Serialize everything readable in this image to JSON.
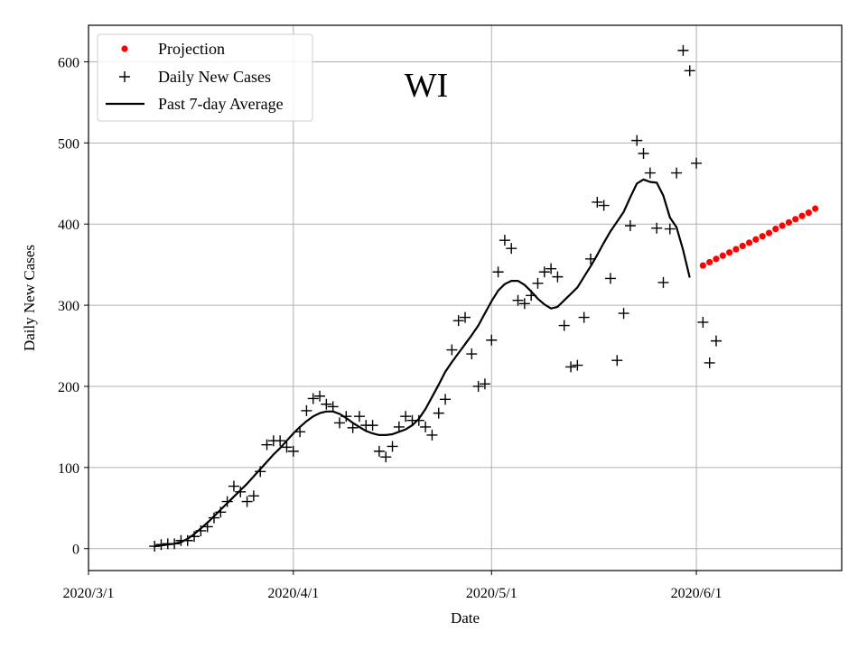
{
  "chart_data": {
    "type": "scatter",
    "title": "WI",
    "xlabel": "Date",
    "ylabel": "Daily New Cases",
    "grid": true,
    "legend_position": "top-left",
    "x_axis": {
      "type": "date",
      "range": [
        "2020-03-01",
        "2020-06-23"
      ],
      "ticks": [
        {
          "date": "2020-03-01",
          "label": "2020/3/1"
        },
        {
          "date": "2020-04-01",
          "label": "2020/4/1"
        },
        {
          "date": "2020-05-01",
          "label": "2020/5/1"
        },
        {
          "date": "2020-06-01",
          "label": "2020/6/1"
        }
      ]
    },
    "y_axis": {
      "range": [
        -27,
        645
      ],
      "ticks": [
        0,
        100,
        200,
        300,
        400,
        500,
        600
      ],
      "tick_labels": [
        "0",
        "100",
        "200",
        "300",
        "400",
        "500",
        "600"
      ]
    },
    "legend": [
      {
        "key": "projection",
        "label": "Projection"
      },
      {
        "key": "daily",
        "label": "Daily New Cases"
      },
      {
        "key": "avg",
        "label": "Past 7-day Average"
      }
    ],
    "series": [
      {
        "name": "Daily New Cases",
        "marker": "+",
        "color": "#000000",
        "points": [
          {
            "x": "2020-03-11",
            "y": 3
          },
          {
            "x": "2020-03-12",
            "y": 5
          },
          {
            "x": "2020-03-13",
            "y": 6
          },
          {
            "x": "2020-03-14",
            "y": 6
          },
          {
            "x": "2020-03-15",
            "y": 10
          },
          {
            "x": "2020-03-16",
            "y": 10
          },
          {
            "x": "2020-03-17",
            "y": 15
          },
          {
            "x": "2020-03-18",
            "y": 22
          },
          {
            "x": "2020-03-19",
            "y": 27
          },
          {
            "x": "2020-03-20",
            "y": 38
          },
          {
            "x": "2020-03-21",
            "y": 45
          },
          {
            "x": "2020-03-22",
            "y": 58
          },
          {
            "x": "2020-03-23",
            "y": 77
          },
          {
            "x": "2020-03-24",
            "y": 70
          },
          {
            "x": "2020-03-25",
            "y": 58
          },
          {
            "x": "2020-03-26",
            "y": 65
          },
          {
            "x": "2020-03-27",
            "y": 95
          },
          {
            "x": "2020-03-28",
            "y": 128
          },
          {
            "x": "2020-03-29",
            "y": 133
          },
          {
            "x": "2020-03-30",
            "y": 133
          },
          {
            "x": "2020-03-31",
            "y": 125
          },
          {
            "x": "2020-04-01",
            "y": 120
          },
          {
            "x": "2020-04-02",
            "y": 144
          },
          {
            "x": "2020-04-03",
            "y": 170
          },
          {
            "x": "2020-04-04",
            "y": 185
          },
          {
            "x": "2020-04-05",
            "y": 188
          },
          {
            "x": "2020-04-06",
            "y": 178
          },
          {
            "x": "2020-04-07",
            "y": 175
          },
          {
            "x": "2020-04-08",
            "y": 155
          },
          {
            "x": "2020-04-09",
            "y": 163
          },
          {
            "x": "2020-04-10",
            "y": 149
          },
          {
            "x": "2020-04-11",
            "y": 163
          },
          {
            "x": "2020-04-12",
            "y": 152
          },
          {
            "x": "2020-04-13",
            "y": 152
          },
          {
            "x": "2020-04-14",
            "y": 120
          },
          {
            "x": "2020-04-15",
            "y": 113
          },
          {
            "x": "2020-04-16",
            "y": 126
          },
          {
            "x": "2020-04-17",
            "y": 150
          },
          {
            "x": "2020-04-18",
            "y": 163
          },
          {
            "x": "2020-04-19",
            "y": 158
          },
          {
            "x": "2020-04-20",
            "y": 158
          },
          {
            "x": "2020-04-21",
            "y": 150
          },
          {
            "x": "2020-04-22",
            "y": 140
          },
          {
            "x": "2020-04-23",
            "y": 167
          },
          {
            "x": "2020-04-24",
            "y": 184
          },
          {
            "x": "2020-04-25",
            "y": 245
          },
          {
            "x": "2020-04-26",
            "y": 281
          },
          {
            "x": "2020-04-27",
            "y": 285
          },
          {
            "x": "2020-04-28",
            "y": 240
          },
          {
            "x": "2020-04-29",
            "y": 200
          },
          {
            "x": "2020-04-30",
            "y": 203
          },
          {
            "x": "2020-05-01",
            "y": 257
          },
          {
            "x": "2020-05-02",
            "y": 341
          },
          {
            "x": "2020-05-03",
            "y": 380
          },
          {
            "x": "2020-05-04",
            "y": 370
          },
          {
            "x": "2020-05-05",
            "y": 306
          },
          {
            "x": "2020-05-06",
            "y": 302
          },
          {
            "x": "2020-05-07",
            "y": 312
          },
          {
            "x": "2020-05-08",
            "y": 327
          },
          {
            "x": "2020-05-09",
            "y": 341
          },
          {
            "x": "2020-05-10",
            "y": 345
          },
          {
            "x": "2020-05-11",
            "y": 335
          },
          {
            "x": "2020-05-12",
            "y": 275
          },
          {
            "x": "2020-05-13",
            "y": 224
          },
          {
            "x": "2020-05-14",
            "y": 226
          },
          {
            "x": "2020-05-15",
            "y": 285
          },
          {
            "x": "2020-05-16",
            "y": 357
          },
          {
            "x": "2020-05-17",
            "y": 427
          },
          {
            "x": "2020-05-18",
            "y": 423
          },
          {
            "x": "2020-05-19",
            "y": 333
          },
          {
            "x": "2020-05-20",
            "y": 232
          },
          {
            "x": "2020-05-21",
            "y": 290
          },
          {
            "x": "2020-05-22",
            "y": 398
          },
          {
            "x": "2020-05-23",
            "y": 503
          },
          {
            "x": "2020-05-24",
            "y": 487
          },
          {
            "x": "2020-05-25",
            "y": 463
          },
          {
            "x": "2020-05-26",
            "y": 395
          },
          {
            "x": "2020-05-27",
            "y": 328
          },
          {
            "x": "2020-05-28",
            "y": 394
          },
          {
            "x": "2020-05-29",
            "y": 463
          },
          {
            "x": "2020-05-30",
            "y": 614
          },
          {
            "x": "2020-05-31",
            "y": 589
          },
          {
            "x": "2020-06-01",
            "y": 475
          },
          {
            "x": "2020-06-02",
            "y": 279
          },
          {
            "x": "2020-06-03",
            "y": 229
          },
          {
            "x": "2020-06-04",
            "y": 256
          }
        ]
      },
      {
        "name": "Past 7-day Average",
        "marker": "line",
        "color": "#000000",
        "points": [
          {
            "x": "2020-03-11",
            "y": 3
          },
          {
            "x": "2020-03-12",
            "y": 4
          },
          {
            "x": "2020-03-13",
            "y": 5
          },
          {
            "x": "2020-03-14",
            "y": 6
          },
          {
            "x": "2020-03-15",
            "y": 8
          },
          {
            "x": "2020-03-16",
            "y": 12
          },
          {
            "x": "2020-03-17",
            "y": 18
          },
          {
            "x": "2020-03-18",
            "y": 25
          },
          {
            "x": "2020-03-19",
            "y": 32
          },
          {
            "x": "2020-03-20",
            "y": 40
          },
          {
            "x": "2020-03-21",
            "y": 48
          },
          {
            "x": "2020-03-22",
            "y": 56
          },
          {
            "x": "2020-03-23",
            "y": 64
          },
          {
            "x": "2020-03-24",
            "y": 72
          },
          {
            "x": "2020-03-25",
            "y": 80
          },
          {
            "x": "2020-03-26",
            "y": 89
          },
          {
            "x": "2020-03-27",
            "y": 98
          },
          {
            "x": "2020-03-28",
            "y": 107
          },
          {
            "x": "2020-03-29",
            "y": 116
          },
          {
            "x": "2020-03-30",
            "y": 124
          },
          {
            "x": "2020-03-31",
            "y": 133
          },
          {
            "x": "2020-04-01",
            "y": 142
          },
          {
            "x": "2020-04-02",
            "y": 150
          },
          {
            "x": "2020-04-03",
            "y": 157
          },
          {
            "x": "2020-04-04",
            "y": 163
          },
          {
            "x": "2020-04-05",
            "y": 167
          },
          {
            "x": "2020-04-06",
            "y": 169
          },
          {
            "x": "2020-04-07",
            "y": 169
          },
          {
            "x": "2020-04-08",
            "y": 166
          },
          {
            "x": "2020-04-09",
            "y": 161
          },
          {
            "x": "2020-04-10",
            "y": 155
          },
          {
            "x": "2020-04-11",
            "y": 150
          },
          {
            "x": "2020-04-12",
            "y": 145
          },
          {
            "x": "2020-04-13",
            "y": 142
          },
          {
            "x": "2020-04-14",
            "y": 140
          },
          {
            "x": "2020-04-15",
            "y": 140
          },
          {
            "x": "2020-04-16",
            "y": 141
          },
          {
            "x": "2020-04-17",
            "y": 144
          },
          {
            "x": "2020-04-18",
            "y": 147
          },
          {
            "x": "2020-04-19",
            "y": 152
          },
          {
            "x": "2020-04-20",
            "y": 160
          },
          {
            "x": "2020-04-21",
            "y": 172
          },
          {
            "x": "2020-04-22",
            "y": 187
          },
          {
            "x": "2020-04-23",
            "y": 202
          },
          {
            "x": "2020-04-24",
            "y": 218
          },
          {
            "x": "2020-04-25",
            "y": 230
          },
          {
            "x": "2020-04-26",
            "y": 241
          },
          {
            "x": "2020-04-27",
            "y": 252
          },
          {
            "x": "2020-04-28",
            "y": 263
          },
          {
            "x": "2020-04-29",
            "y": 275
          },
          {
            "x": "2020-04-30",
            "y": 290
          },
          {
            "x": "2020-05-01",
            "y": 305
          },
          {
            "x": "2020-05-02",
            "y": 318
          },
          {
            "x": "2020-05-03",
            "y": 326
          },
          {
            "x": "2020-05-04",
            "y": 330
          },
          {
            "x": "2020-05-05",
            "y": 330
          },
          {
            "x": "2020-05-06",
            "y": 325
          },
          {
            "x": "2020-05-07",
            "y": 317
          },
          {
            "x": "2020-05-08",
            "y": 308
          },
          {
            "x": "2020-05-09",
            "y": 301
          },
          {
            "x": "2020-05-10",
            "y": 296
          },
          {
            "x": "2020-05-11",
            "y": 298
          },
          {
            "x": "2020-05-12",
            "y": 306
          },
          {
            "x": "2020-05-13",
            "y": 314
          },
          {
            "x": "2020-05-14",
            "y": 322
          },
          {
            "x": "2020-05-15",
            "y": 335
          },
          {
            "x": "2020-05-16",
            "y": 348
          },
          {
            "x": "2020-05-17",
            "y": 362
          },
          {
            "x": "2020-05-18",
            "y": 377
          },
          {
            "x": "2020-05-19",
            "y": 391
          },
          {
            "x": "2020-05-20",
            "y": 403
          },
          {
            "x": "2020-05-21",
            "y": 415
          },
          {
            "x": "2020-05-22",
            "y": 433
          },
          {
            "x": "2020-05-23",
            "y": 450
          },
          {
            "x": "2020-05-24",
            "y": 455
          },
          {
            "x": "2020-05-25",
            "y": 452
          },
          {
            "x": "2020-05-26",
            "y": 451
          },
          {
            "x": "2020-05-27",
            "y": 435
          },
          {
            "x": "2020-05-28",
            "y": 408
          },
          {
            "x": "2020-05-29",
            "y": 396
          },
          {
            "x": "2020-05-30",
            "y": 368
          },
          {
            "x": "2020-05-31",
            "y": 334
          }
        ]
      },
      {
        "name": "Projection",
        "marker": "dot",
        "color": "#ff0000",
        "points": [
          {
            "x": "2020-06-02",
            "y": 349
          },
          {
            "x": "2020-06-03",
            "y": 353
          },
          {
            "x": "2020-06-04",
            "y": 357
          },
          {
            "x": "2020-06-05",
            "y": 361
          },
          {
            "x": "2020-06-06",
            "y": 365
          },
          {
            "x": "2020-06-07",
            "y": 369
          },
          {
            "x": "2020-06-08",
            "y": 373
          },
          {
            "x": "2020-06-09",
            "y": 377
          },
          {
            "x": "2020-06-10",
            "y": 381
          },
          {
            "x": "2020-06-11",
            "y": 385
          },
          {
            "x": "2020-06-12",
            "y": 389
          },
          {
            "x": "2020-06-13",
            "y": 394
          },
          {
            "x": "2020-06-14",
            "y": 398
          },
          {
            "x": "2020-06-15",
            "y": 402
          },
          {
            "x": "2020-06-16",
            "y": 406
          },
          {
            "x": "2020-06-17",
            "y": 410
          },
          {
            "x": "2020-06-18",
            "y": 414
          },
          {
            "x": "2020-06-19",
            "y": 419
          }
        ]
      }
    ]
  }
}
